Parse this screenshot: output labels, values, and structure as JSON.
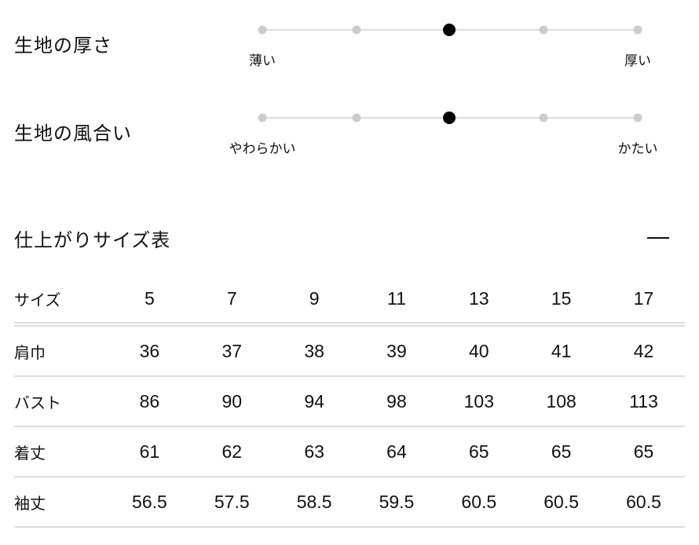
{
  "ratings": [
    {
      "title": "生地の厚さ",
      "min_label": "薄い",
      "max_label": "厚い",
      "steps": 5,
      "selected": 3
    },
    {
      "title": "生地の風合い",
      "min_label": "やわらかい",
      "max_label": "かたい",
      "steps": 5,
      "selected": 3
    }
  ],
  "size_table": {
    "title": "仕上がりサイズ表",
    "toggle_icon": "minus-icon",
    "header": {
      "label": "サイズ",
      "values": [
        "5",
        "7",
        "9",
        "11",
        "13",
        "15",
        "17"
      ]
    },
    "rows": [
      {
        "label": "肩巾",
        "values": [
          "36",
          "37",
          "38",
          "39",
          "40",
          "41",
          "42"
        ]
      },
      {
        "label": "バスト",
        "values": [
          "86",
          "90",
          "94",
          "98",
          "103",
          "108",
          "113"
        ]
      },
      {
        "label": "着丈",
        "values": [
          "61",
          "62",
          "63",
          "64",
          "65",
          "65",
          "65"
        ]
      },
      {
        "label": "袖丈",
        "values": [
          "56.5",
          "57.5",
          "58.5",
          "59.5",
          "60.5",
          "60.5",
          "60.5"
        ]
      }
    ]
  }
}
